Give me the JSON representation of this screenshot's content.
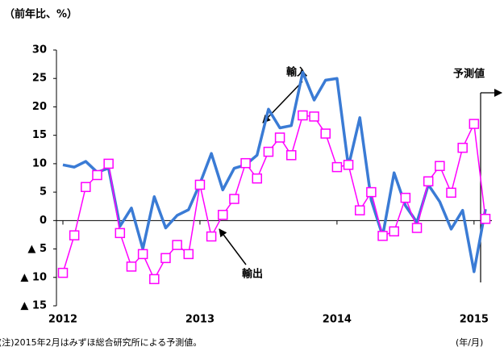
{
  "chart_data": {
    "type": "line",
    "title": "（前年比、%）",
    "note": "(注)2015年2月はみずほ総合研究所による予測値。",
    "x_unit": "(年/月)",
    "forecast_label": "予測値",
    "categories": [
      "2012",
      null,
      null,
      null,
      null,
      null,
      null,
      null,
      null,
      null,
      null,
      null,
      "2013",
      null,
      null,
      null,
      null,
      null,
      null,
      null,
      null,
      null,
      null,
      null,
      "2014",
      null,
      null,
      null,
      null,
      null,
      null,
      null,
      null,
      null,
      null,
      null,
      "2015",
      null
    ],
    "series": [
      {
        "name": "輸入",
        "color": "#3a7bd5",
        "values": [
          9.8,
          9.4,
          10.4,
          8.5,
          9.2,
          -1.0,
          2.2,
          -5.0,
          4.2,
          -1.3,
          0.9,
          1.9,
          6.5,
          11.8,
          5.4,
          9.2,
          9.8,
          11.5,
          19.6,
          16.3,
          16.7,
          26.1,
          21.2,
          24.7,
          25.0,
          9.5,
          18.1,
          3.6,
          -2.7,
          8.4,
          2.6,
          -0.3,
          6.3,
          3.3,
          -1.5,
          1.8,
          -9.0,
          2.0
        ]
      },
      {
        "name": "輸出",
        "color": "#ff00ff",
        "values": [
          -9.2,
          -2.6,
          5.9,
          8.0,
          10.0,
          -2.2,
          -8.1,
          -5.9,
          -10.3,
          -6.6,
          -4.3,
          -5.9,
          6.3,
          -2.8,
          1.0,
          3.8,
          10.1,
          7.4,
          12.1,
          14.6,
          11.5,
          18.5,
          18.3,
          15.3,
          9.4,
          9.8,
          1.8,
          5.0,
          -2.7,
          -1.9,
          4.0,
          -1.3,
          6.9,
          9.6,
          4.9,
          12.8,
          17.0,
          0.3
        ]
      }
    ],
    "ylim": [
      -15,
      30
    ],
    "yticks": [
      30,
      25,
      20,
      15,
      10,
      5,
      0,
      {
        "value": -5,
        "label": "▲ 5"
      },
      {
        "value": -10,
        "label": "▲ 10"
      },
      {
        "value": -15,
        "label": "▲ 15"
      }
    ]
  }
}
